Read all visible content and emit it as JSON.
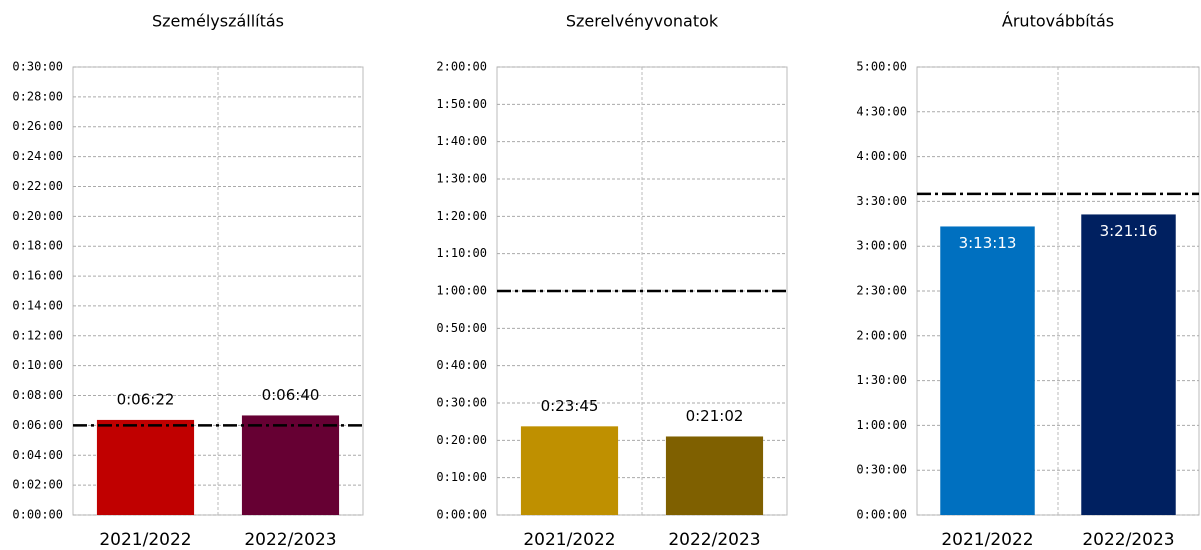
{
  "chart_data": [
    {
      "type": "bar",
      "title": "Személyszállítás",
      "categories": [
        "2021/2022",
        "2022/2023"
      ],
      "values": [
        382,
        400
      ],
      "value_labels": [
        "0:06:22",
        "0:06:40"
      ],
      "colors": [
        "#c00000",
        "#660033"
      ],
      "value_label_position": "above",
      "reference_line": 360,
      "ylim": [
        0,
        1800
      ],
      "grid": true,
      "yticks": [
        {
          "value": 0,
          "label": "0:00:00"
        },
        {
          "value": 120,
          "label": "0:02:00"
        },
        {
          "value": 240,
          "label": "0:04:00"
        },
        {
          "value": 360,
          "label": "0:06:00"
        },
        {
          "value": 480,
          "label": "0:08:00"
        },
        {
          "value": 600,
          "label": "0:10:00"
        },
        {
          "value": 720,
          "label": "0:12:00"
        },
        {
          "value": 840,
          "label": "0:14:00"
        },
        {
          "value": 960,
          "label": "0:16:00"
        },
        {
          "value": 1080,
          "label": "0:18:00"
        },
        {
          "value": 1200,
          "label": "0:20:00"
        },
        {
          "value": 1320,
          "label": "0:22:00"
        },
        {
          "value": 1440,
          "label": "0:24:00"
        },
        {
          "value": 1560,
          "label": "0:26:00"
        },
        {
          "value": 1680,
          "label": "0:28:00"
        },
        {
          "value": 1800,
          "label": "0:30:00"
        }
      ]
    },
    {
      "type": "bar",
      "title": "Szerelvényvonatok",
      "categories": [
        "2021/2022",
        "2022/2023"
      ],
      "values": [
        1425,
        1262
      ],
      "value_labels": [
        "0:23:45",
        "0:21:02"
      ],
      "colors": [
        "#bf9000",
        "#7f6000"
      ],
      "value_label_position": "above",
      "reference_line": 3600,
      "ylim": [
        0,
        7200
      ],
      "grid": true,
      "yticks": [
        {
          "value": 0,
          "label": "0:00:00"
        },
        {
          "value": 600,
          "label": "0:10:00"
        },
        {
          "value": 1200,
          "label": "0:20:00"
        },
        {
          "value": 1800,
          "label": "0:30:00"
        },
        {
          "value": 2400,
          "label": "0:40:00"
        },
        {
          "value": 3000,
          "label": "0:50:00"
        },
        {
          "value": 3600,
          "label": "1:00:00"
        },
        {
          "value": 4200,
          "label": "1:10:00"
        },
        {
          "value": 4800,
          "label": "1:20:00"
        },
        {
          "value": 5400,
          "label": "1:30:00"
        },
        {
          "value": 6000,
          "label": "1:40:00"
        },
        {
          "value": 6600,
          "label": "1:50:00"
        },
        {
          "value": 7200,
          "label": "2:00:00"
        }
      ]
    },
    {
      "type": "bar",
      "title": "Árutovábbítás",
      "categories": [
        "2021/2022",
        "2022/2023"
      ],
      "values": [
        11593,
        12076
      ],
      "value_labels": [
        "3:13:13",
        "3:21:16"
      ],
      "colors": [
        "#0070c0",
        "#002060"
      ],
      "value_label_position": "inside",
      "reference_line": 12900,
      "ylim": [
        0,
        18000
      ],
      "grid": true,
      "yticks": [
        {
          "value": 0,
          "label": "0:00:00"
        },
        {
          "value": 1800,
          "label": "0:30:00"
        },
        {
          "value": 3600,
          "label": "1:00:00"
        },
        {
          "value": 5400,
          "label": "1:30:00"
        },
        {
          "value": 7200,
          "label": "2:00:00"
        },
        {
          "value": 9000,
          "label": "2:30:00"
        },
        {
          "value": 10800,
          "label": "3:00:00"
        },
        {
          "value": 12600,
          "label": "3:30:00"
        },
        {
          "value": 14400,
          "label": "4:00:00"
        },
        {
          "value": 16200,
          "label": "4:30:00"
        },
        {
          "value": 18000,
          "label": "5:00:00"
        }
      ]
    }
  ]
}
